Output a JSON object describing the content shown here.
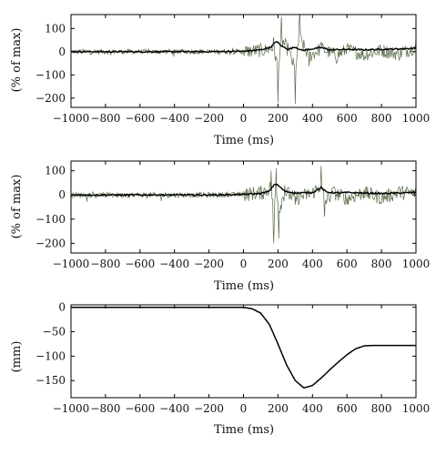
{
  "chart_data": [
    {
      "type": "line",
      "xlabel": "Time (ms)",
      "ylabel": "(% of max)",
      "xlim": [
        -1000,
        1000
      ],
      "ylim": [
        -240,
        160
      ],
      "xticks": [
        "−1000",
        "−800",
        "−600",
        "−400",
        "−200",
        "0",
        "200",
        "400",
        "600",
        "800",
        "1000"
      ],
      "yticks": [
        {
          "value": 100,
          "label": "100"
        },
        {
          "value": 0,
          "label": "0"
        },
        {
          "value": -100,
          "label": "−100"
        },
        {
          "value": -200,
          "label": "−200"
        }
      ],
      "series": [
        {
          "style": "raw",
          "color": "#5a6e4a",
          "x": [
            -1000,
            -500,
            -100,
            0,
            140,
            175,
            200,
            220,
            260,
            300,
            325,
            380,
            450,
            540,
            600,
            700,
            800,
            900,
            1000
          ],
          "y": [
            0,
            0,
            0,
            2,
            20,
            60,
            -220,
            150,
            15,
            -225,
            165,
            -60,
            40,
            -50,
            25,
            -35,
            15,
            -30,
            60
          ]
        },
        {
          "style": "mean",
          "color": "#000000",
          "x": [
            -1000,
            -200,
            0,
            100,
            160,
            190,
            220,
            260,
            300,
            340,
            400,
            450,
            500,
            600,
            700,
            800,
            900,
            1000
          ],
          "y": [
            0,
            0,
            2,
            8,
            20,
            45,
            25,
            10,
            20,
            5,
            12,
            18,
            8,
            10,
            8,
            10,
            12,
            15
          ]
        }
      ]
    },
    {
      "type": "line",
      "xlabel": "Time (ms)",
      "ylabel": "(% of max)",
      "xlim": [
        -1000,
        1000
      ],
      "ylim": [
        -240,
        140
      ],
      "xticks": [
        "−1000",
        "−800",
        "−600",
        "−400",
        "−200",
        "0",
        "200",
        "400",
        "600",
        "800",
        "1000"
      ],
      "yticks": [
        {
          "value": 100,
          "label": "100"
        },
        {
          "value": 0,
          "label": "0"
        },
        {
          "value": -100,
          "label": "−100"
        },
        {
          "value": -200,
          "label": "−200"
        }
      ],
      "series": [
        {
          "style": "raw",
          "color": "#5a6e4a",
          "x": [
            -1000,
            -500,
            -100,
            0,
            120,
            160,
            175,
            190,
            205,
            240,
            300,
            400,
            450,
            470,
            520,
            600,
            700,
            800,
            900,
            1000
          ],
          "y": [
            0,
            0,
            0,
            5,
            30,
            100,
            -200,
            110,
            -180,
            40,
            -40,
            20,
            120,
            -90,
            30,
            -40,
            25,
            -35,
            30,
            20
          ]
        },
        {
          "style": "mean",
          "color": "#000000",
          "x": [
            -1000,
            -200,
            0,
            100,
            150,
            180,
            200,
            240,
            300,
            400,
            450,
            480,
            550,
            600,
            700,
            800,
            900,
            1000
          ],
          "y": [
            0,
            0,
            2,
            6,
            15,
            45,
            40,
            15,
            8,
            10,
            30,
            12,
            8,
            10,
            8,
            6,
            8,
            10
          ]
        }
      ]
    },
    {
      "type": "line",
      "xlabel": "Time (ms)",
      "ylabel": "(mm)",
      "xlim": [
        -1000,
        1000
      ],
      "ylim": [
        -185,
        5
      ],
      "xticks": [
        "−1000",
        "−800",
        "−600",
        "−400",
        "−200",
        "0",
        "200",
        "400",
        "600",
        "800",
        "1000"
      ],
      "yticks": [
        {
          "value": 0,
          "label": "0"
        },
        {
          "value": -50,
          "label": "−50"
        },
        {
          "value": -100,
          "label": "−100"
        },
        {
          "value": -150,
          "label": "−150"
        }
      ],
      "series": [
        {
          "style": "displacement",
          "color": "#000000",
          "x": [
            -1000,
            -500,
            0,
            50,
            100,
            150,
            200,
            250,
            300,
            350,
            400,
            450,
            500,
            550,
            600,
            650,
            700,
            750,
            800,
            900,
            1000
          ],
          "y": [
            0,
            0,
            0,
            -3,
            -12,
            -35,
            -75,
            -118,
            -150,
            -165,
            -160,
            -145,
            -128,
            -112,
            -97,
            -85,
            -79,
            -78,
            -78,
            -78,
            -78
          ]
        }
      ]
    }
  ]
}
